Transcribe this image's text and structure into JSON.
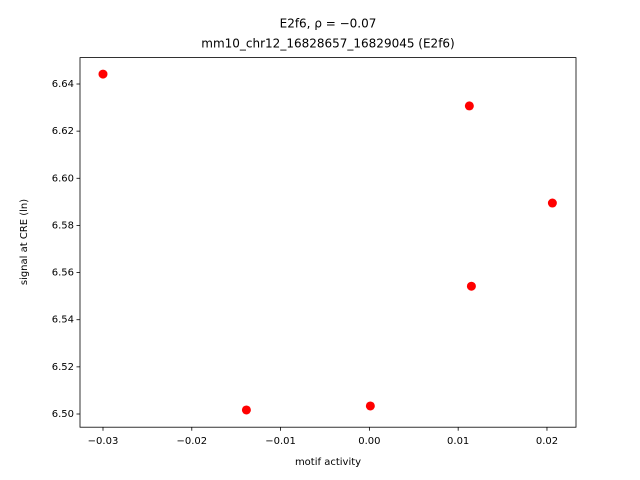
{
  "chart_data": {
    "type": "scatter",
    "title": "E2f6, ρ = −0.07",
    "subtitle": "mm10_chr12_16828657_16829045 (E2f6)",
    "x_label": "motif activity",
    "y_label": "signal at CRE (ln)",
    "color": "#ff0000",
    "x": [
      -0.03,
      0.01126,
      0.02061,
      0.01149,
      0.00011,
      -0.01385
    ],
    "y": [
      6.6442,
      6.6307,
      6.5895,
      6.5542,
      6.5034,
      6.5017
    ],
    "xlim": [
      -0.03259,
      0.02327
    ],
    "ylim": [
      6.4944,
      6.6512
    ],
    "xticks": [
      {
        "value": -0.03,
        "label": "−0.03"
      },
      {
        "value": -0.02,
        "label": "−0.02"
      },
      {
        "value": -0.01,
        "label": "−0.01"
      },
      {
        "value": 0,
        "label": "0.00"
      },
      {
        "value": 0.01,
        "label": "0.01"
      },
      {
        "value": 0.02,
        "label": "0.02"
      }
    ],
    "yticks": [
      {
        "value": 6.5,
        "label": "6.50"
      },
      6.52,
      6.54,
      6.56,
      6.58,
      {
        "value": 6.6,
        "label": "6.60"
      },
      6.62,
      6.64
    ]
  }
}
